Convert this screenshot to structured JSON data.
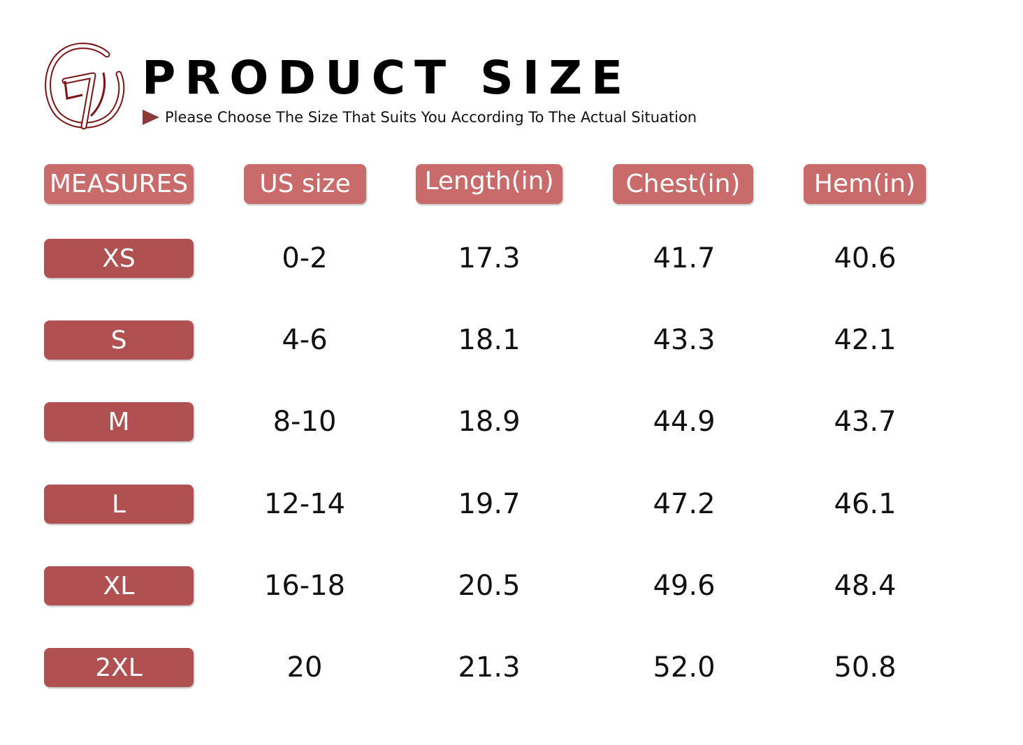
{
  "header": {
    "title": "PRODUCT SIZE",
    "subtitle": "Please Choose The Size That Suits You According To The Actual Situation",
    "logo_icon": "gi-logo",
    "arrow_icon": "arrow-right-icon"
  },
  "colors": {
    "header_pill": "#c96b6b",
    "row_pill": "#b05050",
    "logo": "#7a1414"
  },
  "columns": [
    "MEASURES",
    "US size",
    "Length(in)",
    "Chest(in)",
    "Hem(in)"
  ],
  "rows": [
    {
      "size": "XS",
      "us": "0-2",
      "length": "17.3",
      "chest": "41.7",
      "hem": "40.6"
    },
    {
      "size": "S",
      "us": "4-6",
      "length": "18.1",
      "chest": "43.3",
      "hem": "42.1"
    },
    {
      "size": "M",
      "us": "8-10",
      "length": "18.9",
      "chest": "44.9",
      "hem": "43.7"
    },
    {
      "size": "L",
      "us": "12-14",
      "length": "19.7",
      "chest": "47.2",
      "hem": "46.1"
    },
    {
      "size": "XL",
      "us": "16-18",
      "length": "20.5",
      "chest": "49.6",
      "hem": "48.4"
    },
    {
      "size": "2XL",
      "us": "20",
      "length": "21.3",
      "chest": "52.0",
      "hem": "50.8"
    }
  ]
}
